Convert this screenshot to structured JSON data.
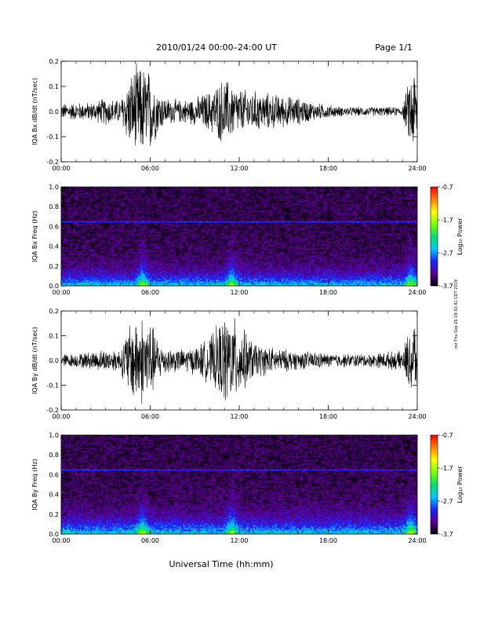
{
  "header": {
    "title": "2010/01/24  00:00–24:00 UT",
    "page": "Page 1/1"
  },
  "stamp": "nst Thu Sep 26 19:32:41 CDT 2019",
  "x_axis_label": "Universal Time (hh:mm)",
  "colors": {
    "trace": "#000000",
    "frame": "#000000"
  },
  "colorbar": {
    "label": "Log₁₀ Power",
    "ticks": [
      "-0.7",
      "-1.7",
      "-2.7",
      "-3.7"
    ],
    "range": [
      -3.7,
      -0.7
    ],
    "stops": [
      "#000000",
      "#5a0090",
      "#1b27ff",
      "#00c8ff",
      "#00e06a",
      "#7cff00",
      "#ffff00",
      "#ff8000",
      "#ff0000"
    ]
  },
  "chart_data": [
    {
      "type": "line",
      "ylabel": "IQA Bx dB/dt (nT/sec)",
      "xlim": [
        0,
        24
      ],
      "ylim": [
        -0.2,
        0.2
      ],
      "x_ticks": [
        "00:00",
        "06:00",
        "12:00",
        "18:00",
        "24:00"
      ],
      "y_ticks": [
        "0.2",
        "0.1",
        "0.0",
        "-0.1",
        "-0.2"
      ],
      "y_tick_values": [
        0.2,
        0.1,
        0.0,
        -0.1,
        -0.2
      ],
      "amplitude_envelope": {
        "x": [
          0,
          1,
          2,
          3,
          4,
          4.5,
          5,
          5.3,
          5.6,
          6,
          6.5,
          7,
          8,
          9,
          10,
          10.5,
          11,
          11.5,
          12,
          13,
          14,
          15,
          16,
          17,
          18,
          19,
          20,
          21,
          22,
          23,
          23.5,
          23.8,
          24
        ],
        "y": [
          0.035,
          0.04,
          0.04,
          0.06,
          0.05,
          0.14,
          0.2,
          0.2,
          0.2,
          0.18,
          0.1,
          0.06,
          0.05,
          0.06,
          0.09,
          0.12,
          0.15,
          0.12,
          0.1,
          0.09,
          0.08,
          0.07,
          0.06,
          0.04,
          0.03,
          0.02,
          0.02,
          0.02,
          0.02,
          0.02,
          0.15,
          0.2,
          0.12
        ]
      }
    },
    {
      "type": "heatmap",
      "ylabel": "IQA Bx Freq (Hz)",
      "xlim": [
        0,
        24
      ],
      "ylim": [
        0.0,
        1.0
      ],
      "x_ticks": [
        "00:00",
        "06:00",
        "12:00",
        "18:00",
        "24:00"
      ],
      "y_ticks": [
        "1.0",
        "0.8",
        "0.6",
        "0.4",
        "0.2",
        "0.0"
      ],
      "y_tick_values": [
        1.0,
        0.8,
        0.6,
        0.4,
        0.2,
        0.0
      ],
      "background_log_power": -3.5,
      "low_frequency_band_hz": 0.1,
      "spectral_line_hz": 0.65,
      "active_hours": [
        5.5,
        11.5,
        23.6
      ]
    },
    {
      "type": "line",
      "ylabel": "IQA By dB/dt (nT/sec)",
      "xlim": [
        0,
        24
      ],
      "ylim": [
        -0.2,
        0.2
      ],
      "x_ticks": [
        "00:00",
        "06:00",
        "12:00",
        "18:00",
        "24:00"
      ],
      "y_ticks": [
        "0.2",
        "0.1",
        "0.0",
        "-0.1",
        "-0.2"
      ],
      "y_tick_values": [
        0.2,
        0.1,
        0.0,
        -0.1,
        -0.2
      ],
      "amplitude_envelope": {
        "x": [
          0,
          1,
          2,
          3,
          4,
          4.5,
          5,
          5.3,
          5.6,
          6,
          6.5,
          7,
          8,
          9,
          10,
          10.5,
          11,
          11.5,
          12,
          13,
          14,
          15,
          16,
          17,
          18,
          19,
          20,
          21,
          22,
          23,
          23.5,
          23.8,
          24
        ],
        "y": [
          0.03,
          0.03,
          0.04,
          0.05,
          0.05,
          0.15,
          0.2,
          0.2,
          0.2,
          0.18,
          0.1,
          0.06,
          0.05,
          0.06,
          0.1,
          0.15,
          0.2,
          0.2,
          0.16,
          0.08,
          0.06,
          0.05,
          0.04,
          0.04,
          0.03,
          0.03,
          0.03,
          0.03,
          0.04,
          0.04,
          0.15,
          0.2,
          0.12
        ]
      }
    },
    {
      "type": "heatmap",
      "ylabel": "IQA By Freq (Hz)",
      "xlim": [
        0,
        24
      ],
      "ylim": [
        0.0,
        1.0
      ],
      "x_ticks": [
        "00:00",
        "06:00",
        "12:00",
        "18:00",
        "24:00"
      ],
      "y_ticks": [
        "1.0",
        "0.8",
        "0.6",
        "0.4",
        "0.2",
        "0.0"
      ],
      "y_tick_values": [
        1.0,
        0.8,
        0.6,
        0.4,
        0.2,
        0.0
      ],
      "background_log_power": -3.5,
      "low_frequency_band_hz": 0.12,
      "spectral_line_hz": 0.65,
      "active_hours": [
        5.5,
        11.5,
        23.6
      ]
    }
  ]
}
